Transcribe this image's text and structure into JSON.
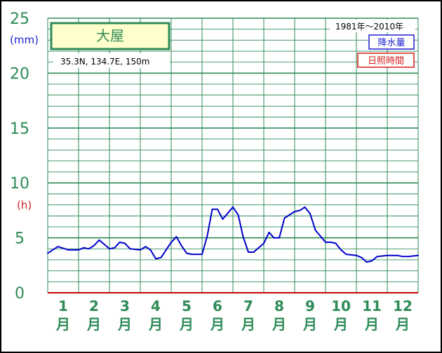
{
  "station": {
    "name": "大屋",
    "coords": "35.3N,  134.7E,  150m"
  },
  "period": "1981年〜2010年",
  "legend": {
    "precipitation": "降水量",
    "sunshine": "日照時間"
  },
  "units": {
    "precipitation": "(mm)",
    "sunshine": "(h)"
  },
  "colors": {
    "grid": "#2e8b57",
    "precip_line": "#0000cd",
    "axis_bottom": "#cc0000",
    "station_box_fill": "#ffffcc"
  },
  "chart_data": {
    "type": "line",
    "title": "",
    "xlabel": "",
    "ylabel": "",
    "ylim": [
      0,
      25
    ],
    "yticks": [
      "0",
      "5",
      "10",
      "15",
      "20",
      "25"
    ],
    "categories": [
      "1\n月",
      "2\n月",
      "3\n月",
      "4\n月",
      "5\n月",
      "6\n月",
      "7\n月",
      "8\n月",
      "9\n月",
      "10\n月",
      "11\n月",
      "12\n月"
    ],
    "month_labels": [
      {
        "num": "1",
        "suffix": "月"
      },
      {
        "num": "2",
        "suffix": "月"
      },
      {
        "num": "3",
        "suffix": "月"
      },
      {
        "num": "4",
        "suffix": "月"
      },
      {
        "num": "5",
        "suffix": "月"
      },
      {
        "num": "6",
        "suffix": "月"
      },
      {
        "num": "7",
        "suffix": "月"
      },
      {
        "num": "8",
        "suffix": "月"
      },
      {
        "num": "9",
        "suffix": "月"
      },
      {
        "num": "10",
        "suffix": "月"
      },
      {
        "num": "11",
        "suffix": "月"
      },
      {
        "num": "12",
        "suffix": "月"
      }
    ],
    "grid": true,
    "series": [
      {
        "name": "降水量",
        "x": [
          0.0,
          0.33,
          0.67,
          1.0,
          1.17,
          1.33,
          1.5,
          1.67,
          2.0,
          2.17,
          2.33,
          2.5,
          2.67,
          3.0,
          3.17,
          3.33,
          3.5,
          3.67,
          4.0,
          4.17,
          4.33,
          4.5,
          4.67,
          5.0,
          5.17,
          5.33,
          5.5,
          5.67,
          6.0,
          6.17,
          6.33,
          6.5,
          6.67,
          7.0,
          7.17,
          7.33,
          7.5,
          7.67,
          8.0,
          8.17,
          8.33,
          8.5,
          8.67,
          9.0,
          9.17,
          9.33,
          9.5,
          9.67,
          10.0,
          10.17,
          10.33,
          10.5,
          10.67,
          11.0,
          11.17,
          11.33,
          11.5,
          11.67,
          12.0
        ],
        "values": [
          3.6,
          4.2,
          3.9,
          3.9,
          4.1,
          4.0,
          4.3,
          4.8,
          4.0,
          4.1,
          4.6,
          4.5,
          4.0,
          3.9,
          4.2,
          3.9,
          3.1,
          3.2,
          4.6,
          5.1,
          4.3,
          3.6,
          3.5,
          3.5,
          5.2,
          7.6,
          7.6,
          6.7,
          7.8,
          7.1,
          5.1,
          3.7,
          3.7,
          4.5,
          5.5,
          5.0,
          5.0,
          6.8,
          7.4,
          7.5,
          7.8,
          7.2,
          5.7,
          4.6,
          4.6,
          4.5,
          3.9,
          3.5,
          3.4,
          3.2,
          2.8,
          2.9,
          3.3,
          3.4,
          3.4,
          3.4,
          3.3,
          3.3,
          3.4
        ]
      }
    ]
  }
}
